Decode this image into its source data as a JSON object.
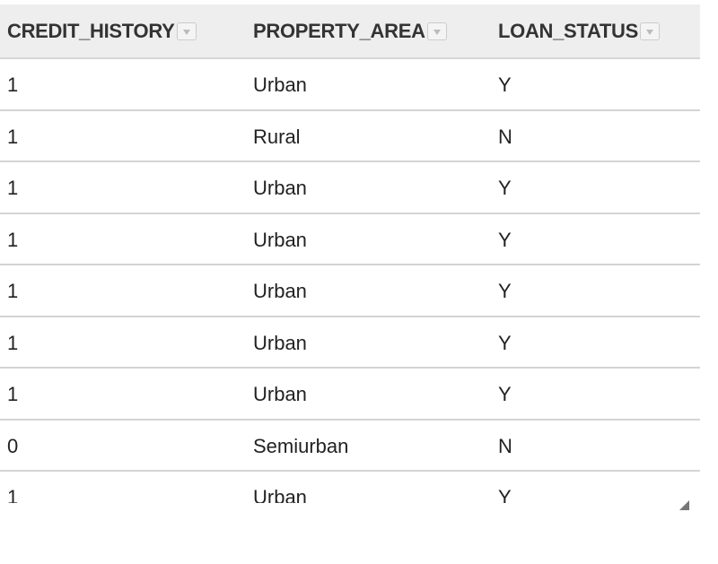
{
  "table": {
    "columns": [
      "CREDIT_HISTORY",
      "PROPERTY_AREA",
      "LOAN_STATUS"
    ],
    "rows": [
      [
        "1",
        "Urban",
        "Y"
      ],
      [
        "1",
        "Rural",
        "N"
      ],
      [
        "1",
        "Urban",
        "Y"
      ],
      [
        "1",
        "Urban",
        "Y"
      ],
      [
        "1",
        "Urban",
        "Y"
      ],
      [
        "1",
        "Urban",
        "Y"
      ],
      [
        "1",
        "Urban",
        "Y"
      ],
      [
        "0",
        "Semiurban",
        "N"
      ],
      [
        "1",
        "Urban",
        "Y"
      ]
    ]
  }
}
